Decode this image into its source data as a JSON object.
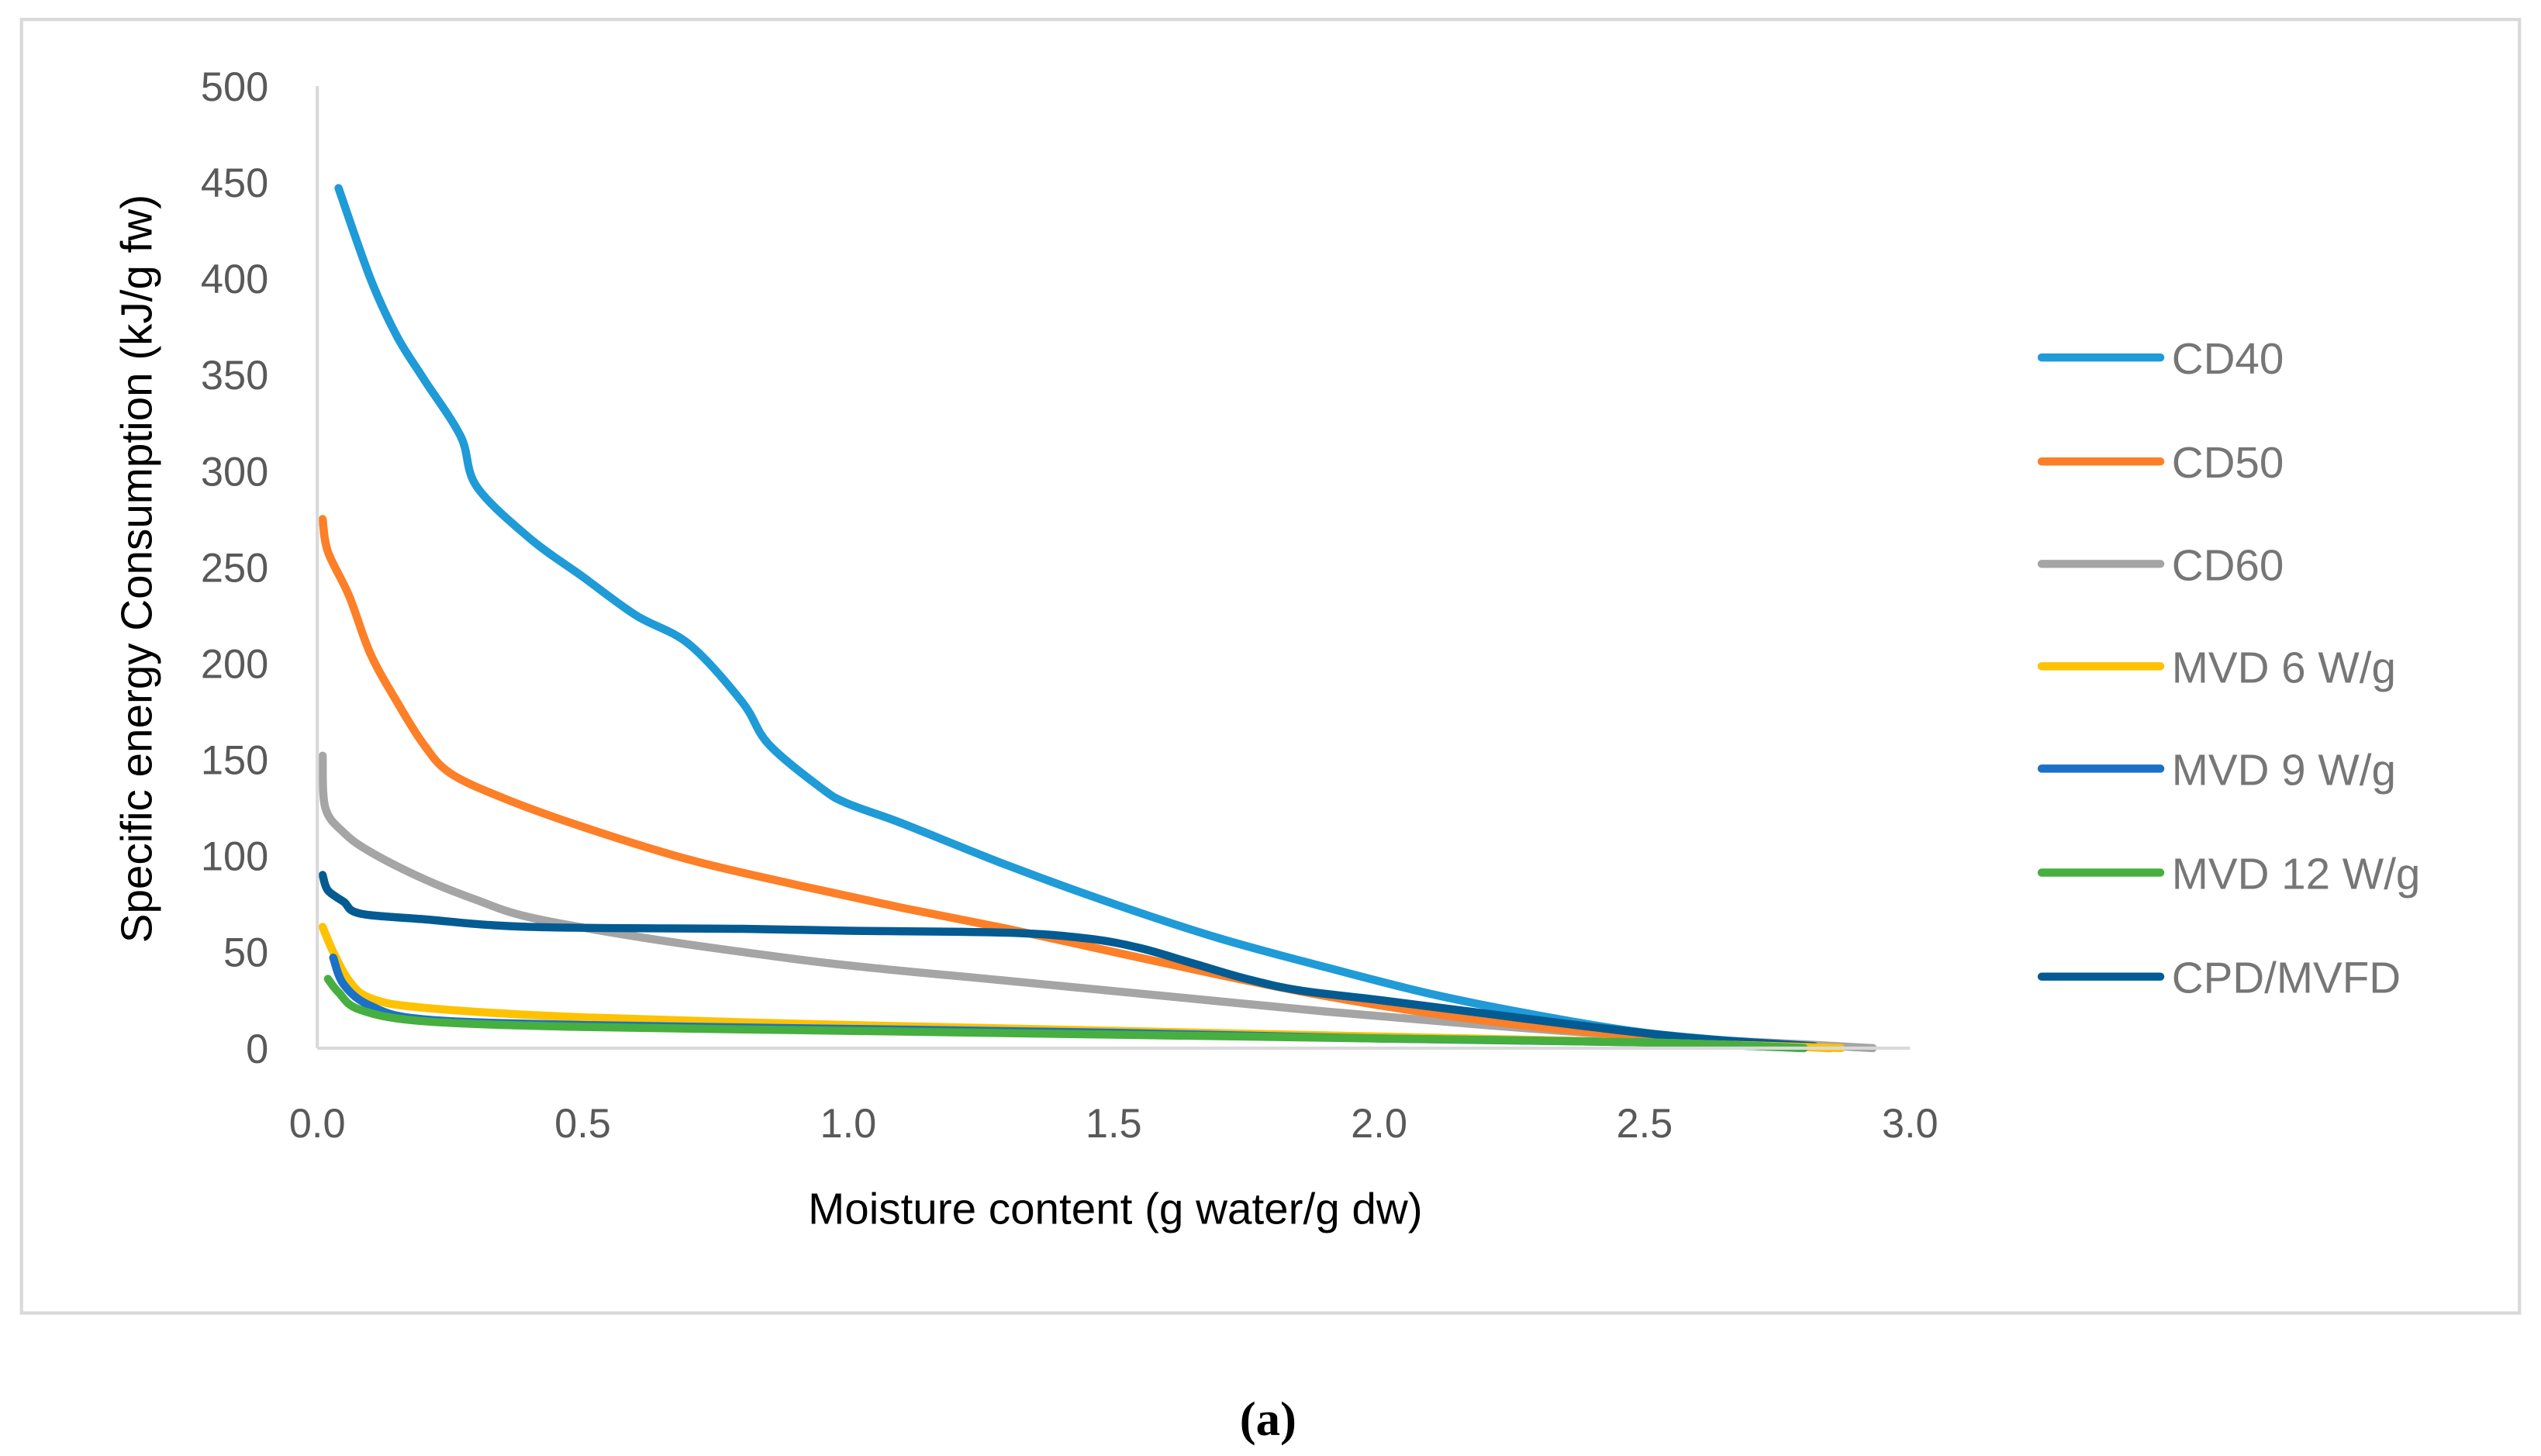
{
  "chart_data": {
    "type": "line",
    "title": "",
    "caption": "(a)",
    "xlabel": "Moisture content (g water/g dw)",
    "ylabel": "Specific energy Consumption (kJ/g fw)",
    "xlim": [
      0,
      3.0
    ],
    "ylim": [
      0,
      500
    ],
    "xticks": [
      "0.0",
      "0.5",
      "1.0",
      "1.5",
      "2.0",
      "2.5",
      "3.0"
    ],
    "yticks": [
      "0",
      "50",
      "100",
      "150",
      "200",
      "250",
      "300",
      "350",
      "400",
      "450",
      "500"
    ],
    "grid": false,
    "legend_position": "right",
    "series": [
      {
        "name": "CD40",
        "color": "#1f9bd7",
        "points": [
          [
            0.04,
            447
          ],
          [
            0.1,
            400
          ],
          [
            0.15,
            370
          ],
          [
            0.2,
            348
          ],
          [
            0.27,
            318
          ],
          [
            0.3,
            292
          ],
          [
            0.4,
            265
          ],
          [
            0.5,
            245
          ],
          [
            0.6,
            225
          ],
          [
            0.7,
            210
          ],
          [
            0.8,
            180
          ],
          [
            0.85,
            158
          ],
          [
            0.95,
            135
          ],
          [
            1.0,
            127
          ],
          [
            1.1,
            117
          ],
          [
            1.3,
            95
          ],
          [
            1.5,
            75
          ],
          [
            1.7,
            57
          ],
          [
            1.9,
            42
          ],
          [
            2.1,
            28
          ],
          [
            2.3,
            17
          ],
          [
            2.5,
            8
          ],
          [
            2.7,
            3
          ],
          [
            2.82,
            1
          ]
        ]
      },
      {
        "name": "CD50",
        "color": "#fd7f27",
        "points": [
          [
            0.01,
            275
          ],
          [
            0.02,
            258
          ],
          [
            0.06,
            235
          ],
          [
            0.1,
            205
          ],
          [
            0.15,
            180
          ],
          [
            0.2,
            158
          ],
          [
            0.25,
            143
          ],
          [
            0.35,
            130
          ],
          [
            0.5,
            115
          ],
          [
            0.7,
            98
          ],
          [
            0.9,
            85
          ],
          [
            1.1,
            73
          ],
          [
            1.3,
            62
          ],
          [
            1.5,
            50
          ],
          [
            1.7,
            38
          ],
          [
            1.9,
            27
          ],
          [
            2.1,
            18
          ],
          [
            2.3,
            11
          ],
          [
            2.5,
            6
          ],
          [
            2.7,
            2
          ],
          [
            2.85,
            0
          ]
        ]
      },
      {
        "name": "CD60",
        "color": "#a5a5a5",
        "points": [
          [
            0.01,
            152
          ],
          [
            0.015,
            125
          ],
          [
            0.05,
            112
          ],
          [
            0.1,
            102
          ],
          [
            0.2,
            88
          ],
          [
            0.3,
            77
          ],
          [
            0.4,
            68
          ],
          [
            0.6,
            58
          ],
          [
            0.8,
            50
          ],
          [
            1.0,
            43
          ],
          [
            1.3,
            35
          ],
          [
            1.6,
            27
          ],
          [
            1.9,
            19
          ],
          [
            2.2,
            12
          ],
          [
            2.5,
            6
          ],
          [
            2.8,
            2
          ],
          [
            2.93,
            0
          ]
        ]
      },
      {
        "name": "MVD 6 W/g",
        "color": "#fec200",
        "points": [
          [
            0.01,
            63
          ],
          [
            0.03,
            50
          ],
          [
            0.06,
            35
          ],
          [
            0.1,
            26
          ],
          [
            0.2,
            21
          ],
          [
            0.5,
            16
          ],
          [
            1.0,
            12
          ],
          [
            1.5,
            9
          ],
          [
            2.0,
            6
          ],
          [
            2.5,
            3
          ],
          [
            2.87,
            0
          ]
        ]
      },
      {
        "name": "MVD 9 W/g",
        "color": "#1a71c6",
        "points": [
          [
            0.03,
            47
          ],
          [
            0.05,
            33
          ],
          [
            0.1,
            22
          ],
          [
            0.2,
            15
          ],
          [
            0.5,
            12
          ],
          [
            1.0,
            10
          ],
          [
            1.5,
            8
          ],
          [
            2.0,
            5
          ],
          [
            2.5,
            3
          ],
          [
            2.8,
            0
          ]
        ]
      },
      {
        "name": "MVD 12 W/g",
        "color": "#46af40",
        "points": [
          [
            0.02,
            36
          ],
          [
            0.04,
            29
          ],
          [
            0.08,
            20
          ],
          [
            0.2,
            14
          ],
          [
            0.5,
            11
          ],
          [
            1.0,
            9
          ],
          [
            1.5,
            7
          ],
          [
            2.0,
            5
          ],
          [
            2.5,
            3
          ],
          [
            2.8,
            0
          ]
        ]
      },
      {
        "name": "CPD/MVFD",
        "color": "#035b92",
        "points": [
          [
            0.01,
            90
          ],
          [
            0.02,
            82
          ],
          [
            0.05,
            76
          ],
          [
            0.08,
            70
          ],
          [
            0.2,
            67
          ],
          [
            0.4,
            63
          ],
          [
            0.8,
            62
          ],
          [
            1.0,
            61
          ],
          [
            1.3,
            60
          ],
          [
            1.45,
            57
          ],
          [
            1.55,
            52
          ],
          [
            1.65,
            44
          ],
          [
            1.75,
            36
          ],
          [
            1.85,
            30
          ],
          [
            2.0,
            25
          ],
          [
            2.2,
            18
          ],
          [
            2.4,
            11
          ],
          [
            2.6,
            5
          ],
          [
            2.82,
            1
          ]
        ]
      }
    ]
  }
}
